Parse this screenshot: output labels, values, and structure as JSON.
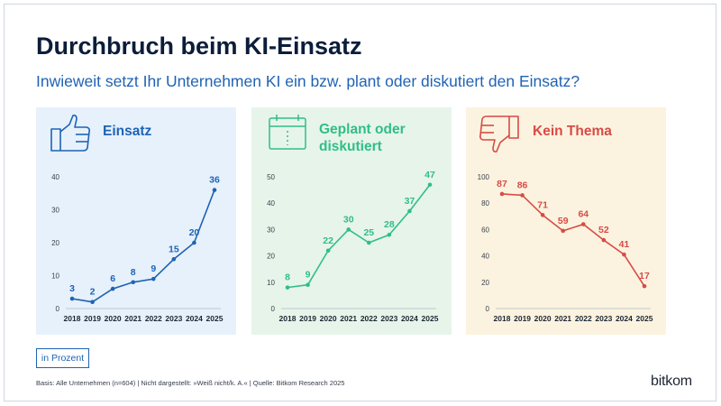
{
  "header": {
    "title": "Durchbruch beim KI-Einsatz",
    "subtitle": "Inwieweit setzt Ihr Unternehmen KI ein bzw. plant oder diskutiert den Einsatz?"
  },
  "colors": {
    "blue": "#1f63b5",
    "blue_bg": "#e6f1fb",
    "green": "#2fbf85",
    "green_bg": "#e7f4ea",
    "red": "#d84b47",
    "red_bg": "#fbf3df"
  },
  "panels": [
    {
      "icon": "thumbs-up-icon",
      "title_lines": [
        "Einsatz"
      ]
    },
    {
      "icon": "calendar-icon",
      "title_lines": [
        "Geplant oder",
        "diskutiert"
      ]
    },
    {
      "icon": "thumbs-down-icon",
      "title_lines": [
        "Kein Thema"
      ]
    }
  ],
  "chart_data": [
    {
      "type": "line",
      "title": "Einsatz",
      "x": [
        "2018",
        "2019",
        "2020",
        "2021",
        "2022",
        "2023",
        "2024",
        "2025"
      ],
      "y": [
        3,
        2,
        6,
        8,
        9,
        15,
        20,
        36
      ],
      "ylim": [
        0,
        40
      ],
      "yticks": [
        0,
        10,
        20,
        30,
        40
      ],
      "color": "#1f63b5",
      "grid": false
    },
    {
      "type": "line",
      "title": "Geplant oder diskutiert",
      "x": [
        "2018",
        "2019",
        "2020",
        "2021",
        "2022",
        "2023",
        "2024",
        "2025"
      ],
      "y": [
        8,
        9,
        22,
        30,
        25,
        28,
        37,
        47
      ],
      "ylim": [
        0,
        50
      ],
      "yticks": [
        0,
        10,
        20,
        30,
        40,
        50
      ],
      "color": "#2fbf85",
      "grid": false
    },
    {
      "type": "line",
      "title": "Kein Thema",
      "x": [
        "2018",
        "2019",
        "2020",
        "2021",
        "2022",
        "2023",
        "2024",
        "2025"
      ],
      "y": [
        87,
        86,
        71,
        59,
        64,
        52,
        41,
        17
      ],
      "ylim": [
        0,
        100
      ],
      "yticks": [
        0,
        20,
        40,
        60,
        80,
        100
      ],
      "color": "#d84b47",
      "grid": false
    }
  ],
  "footer": {
    "unit": "in Prozent",
    "note": "Basis: Alle Unternehmen (n=604) | Nicht dargestellt: »Weiß nicht/k. A.« | Quelle: Bitkom Research 2025",
    "logo": "bitkom"
  }
}
